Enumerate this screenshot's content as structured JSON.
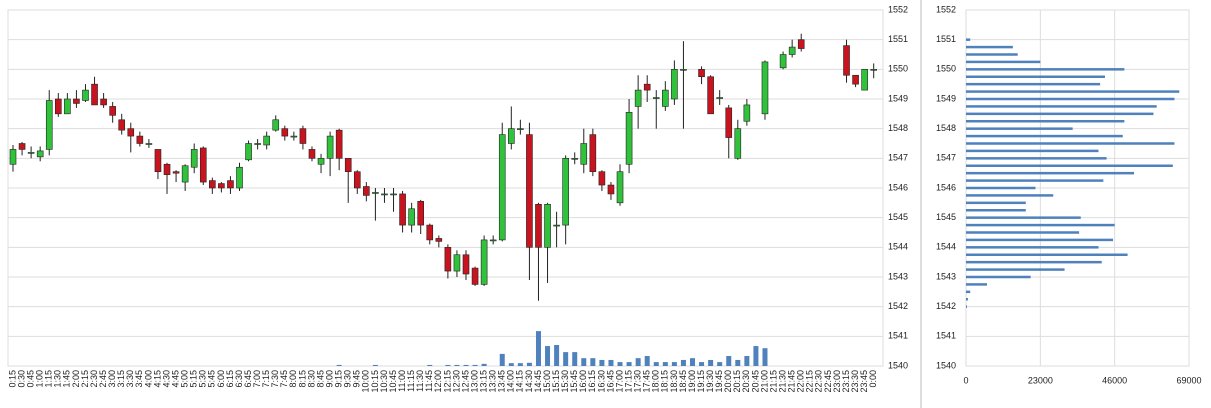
{
  "chart_data": [
    {
      "type": "candlestick",
      "categories": [
        "0:15",
        "0:30",
        "0:45",
        "1:00",
        "1:15",
        "1:30",
        "1:45",
        "2:00",
        "2:15",
        "2:30",
        "2:45",
        "3:00",
        "3:15",
        "3:30",
        "3:45",
        "4:00",
        "4:15",
        "4:30",
        "4:45",
        "5:00",
        "5:15",
        "5:30",
        "5:45",
        "6:00",
        "6:15",
        "6:30",
        "6:45",
        "7:00",
        "7:15",
        "7:30",
        "7:45",
        "8:00",
        "8:15",
        "8:30",
        "8:45",
        "9:00",
        "9:15",
        "9:30",
        "9:45",
        "10:00",
        "10:15",
        "10:30",
        "10:45",
        "11:00",
        "11:15",
        "11:30",
        "11:45",
        "12:00",
        "12:15",
        "12:30",
        "12:45",
        "13:00",
        "13:15",
        "13:30",
        "13:45",
        "14:00",
        "14:15",
        "14:30",
        "14:45",
        "15:00",
        "15:15",
        "15:30",
        "15:45",
        "16:00",
        "16:15",
        "16:30",
        "16:45",
        "17:00",
        "17:15",
        "17:30",
        "17:45",
        "18:00",
        "18:15",
        "18:30",
        "18:45",
        "19:00",
        "19:15",
        "19:30",
        "19:45",
        "20:00",
        "20:15",
        "20:30",
        "20:45",
        "21:00",
        "21:15",
        "21:30",
        "21:45",
        "22:00",
        "22:15",
        "22:30",
        "22:45",
        "23:00",
        "23:15",
        "23:30",
        "23:45",
        "0:00"
      ],
      "open": [
        1546.8,
        1547.5,
        1547.2,
        1547.05,
        1547.3,
        1549.0,
        1548.5,
        1549.0,
        1548.95,
        1549.5,
        1549.0,
        1548.75,
        1548.3,
        1548.0,
        1547.75,
        1547.5,
        1547.3,
        1546.8,
        1546.55,
        1546.2,
        1546.7,
        1547.35,
        1546.25,
        1546.15,
        1546.25,
        1546.0,
        1546.95,
        1547.5,
        1547.45,
        1547.95,
        1548.0,
        1547.75,
        1548.0,
        1547.3,
        1546.8,
        1547.0,
        1547.95,
        1547.0,
        1546.55,
        1546.05,
        1545.85,
        1545.8,
        1545.8,
        1545.8,
        1544.75,
        1545.55,
        1544.75,
        1544.3,
        1544.0,
        1543.2,
        1543.75,
        1543.3,
        1542.75,
        1544.25,
        1544.25,
        1547.5,
        1548.0,
        1547.8,
        1545.45,
        1544.0,
        1544.75,
        1544.75,
        1547.0,
        1546.8,
        1547.8,
        1546.55,
        1546.1,
        1545.5,
        1546.8,
        1548.75,
        1549.5,
        1549.05,
        1548.75,
        1549.0,
        1550.0,
        null,
        1550.0,
        1549.75,
        1549.05,
        1548.7,
        1547.0,
        1548.25,
        null,
        1548.5,
        null,
        1550.05,
        1550.5,
        1551.0,
        null,
        null,
        null,
        null,
        1550.8,
        1549.8,
        1549.3,
        1550.0
      ],
      "high": [
        1547.45,
        1547.55,
        1547.4,
        1547.4,
        1549.3,
        1549.2,
        1549.2,
        1549.3,
        1549.5,
        1549.75,
        1549.2,
        1548.9,
        1548.5,
        1548.2,
        1547.9,
        1547.65,
        1547.3,
        1546.85,
        1546.6,
        1546.8,
        1547.5,
        1547.4,
        1546.35,
        1546.2,
        1546.4,
        1546.85,
        1547.6,
        1547.65,
        1547.9,
        1548.45,
        1548.1,
        1547.9,
        1548.1,
        1547.4,
        1547.15,
        1547.9,
        1548.0,
        1547.0,
        1546.6,
        1546.2,
        1546.0,
        1546.0,
        1546.0,
        1545.9,
        1545.5,
        1545.6,
        1544.8,
        1544.4,
        1544.1,
        1543.9,
        1543.9,
        1543.35,
        1544.4,
        1544.4,
        1548.2,
        1548.75,
        1548.3,
        1548.2,
        1545.5,
        1545.5,
        1545.2,
        1547.1,
        1547.2,
        1548.0,
        1548.0,
        1546.6,
        1546.2,
        1546.8,
        1549.0,
        1549.8,
        1549.8,
        1549.3,
        1549.6,
        1550.3,
        1550.95,
        null,
        1550.1,
        1549.8,
        1549.3,
        1548.8,
        1548.3,
        1549.0,
        null,
        1550.3,
        null,
        1550.6,
        1551.0,
        1551.2,
        null,
        null,
        null,
        null,
        1551.0,
        1549.8,
        1550.0,
        1550.2
      ],
      "low": [
        1546.55,
        1547.1,
        1547.0,
        1546.9,
        1547.1,
        1548.4,
        1548.5,
        1548.7,
        1548.9,
        1548.8,
        1548.7,
        1548.2,
        1547.8,
        1547.2,
        1547.4,
        1547.35,
        1546.3,
        1545.8,
        1546.2,
        1545.9,
        1546.5,
        1546.1,
        1545.8,
        1545.85,
        1545.8,
        1545.9,
        1546.9,
        1547.3,
        1547.3,
        1547.9,
        1547.6,
        1547.6,
        1547.3,
        1546.9,
        1546.5,
        1546.4,
        1546.6,
        1545.5,
        1545.8,
        1545.55,
        1544.9,
        1545.5,
        1545.2,
        1544.5,
        1544.5,
        1544.45,
        1544.1,
        1544.0,
        1542.95,
        1543.0,
        1542.9,
        1542.7,
        1542.7,
        1544.1,
        1544.2,
        1547.3,
        1547.8,
        1542.9,
        1542.2,
        1542.8,
        1544.0,
        1544.1,
        1546.8,
        1546.5,
        1546.4,
        1545.9,
        1545.6,
        1545.4,
        1546.5,
        1548.0,
        1548.9,
        1548.0,
        1548.6,
        1548.8,
        1548.0,
        null,
        1549.5,
        1548.5,
        1548.8,
        1547.0,
        1546.95,
        1548.1,
        null,
        1548.3,
        null,
        1550.0,
        1550.4,
        1550.6,
        null,
        null,
        null,
        null,
        1549.55,
        1549.4,
        1549.3,
        1549.7
      ],
      "close": [
        1547.3,
        1547.3,
        1547.2,
        1547.25,
        1548.95,
        1548.5,
        1549.0,
        1548.85,
        1549.3,
        1548.8,
        1548.8,
        1548.45,
        1547.95,
        1547.75,
        1547.5,
        1547.5,
        1546.55,
        1546.45,
        1546.5,
        1546.75,
        1547.3,
        1546.2,
        1546.0,
        1546.0,
        1546.0,
        1546.7,
        1547.5,
        1547.5,
        1547.75,
        1548.3,
        1547.75,
        1547.75,
        1547.5,
        1547.0,
        1547.0,
        1547.75,
        1547.0,
        1546.55,
        1546.0,
        1545.75,
        1545.85,
        1545.8,
        1545.8,
        1544.75,
        1545.3,
        1544.75,
        1544.25,
        1544.2,
        1543.2,
        1543.75,
        1543.1,
        1542.75,
        1544.25,
        1544.25,
        1547.8,
        1548.0,
        1548.0,
        1544.0,
        1544.0,
        1545.45,
        1544.75,
        1547.0,
        1547.0,
        1547.5,
        1546.55,
        1546.1,
        1545.8,
        1546.55,
        1548.55,
        1549.3,
        1549.3,
        1549.05,
        1549.3,
        1550.0,
        1550.0,
        null,
        1549.75,
        1548.5,
        1549.05,
        1547.7,
        1548.0,
        1548.8,
        null,
        1550.25,
        null,
        1550.5,
        1550.75,
        1550.7,
        null,
        null,
        null,
        null,
        1549.8,
        1549.5,
        1550.0,
        1550.0
      ],
      "volume": [
        0,
        0,
        0,
        0,
        0,
        0,
        0,
        0,
        0,
        0,
        0,
        0,
        0,
        0,
        0,
        0,
        0,
        0,
        0,
        0,
        0,
        0,
        0,
        0,
        0,
        0,
        0,
        0,
        0,
        0,
        0,
        0,
        0,
        0,
        0,
        0,
        300,
        0,
        0,
        0,
        300,
        0,
        0,
        0,
        0,
        0,
        300,
        0,
        300,
        300,
        300,
        300,
        600,
        0,
        3400,
        800,
        800,
        900,
        9800,
        5600,
        5900,
        3900,
        3900,
        2200,
        2200,
        1700,
        1700,
        1100,
        1100,
        2200,
        2800,
        1100,
        1100,
        1100,
        1700,
        2200,
        1100,
        1700,
        1100,
        2800,
        1700,
        2800,
        5600,
        5000,
        0,
        0,
        0,
        0,
        0,
        0,
        0,
        0,
        0,
        0,
        0,
        0
      ],
      "up_color": "#2fc23a",
      "down_color": "#c8141e",
      "volume_color": "#4f81bd",
      "ylim": [
        1540,
        1552
      ],
      "yticks": [
        1540,
        1541,
        1542,
        1543,
        1544,
        1545,
        1546,
        1547,
        1548,
        1549,
        1550,
        1551,
        1552
      ],
      "y2lim": [
        0,
        100000
      ],
      "grid": true
    },
    {
      "type": "barh",
      "y": [
        1551,
        1550.75,
        1550.5,
        1550.25,
        1550,
        1549.75,
        1549.5,
        1549.25,
        1549,
        1548.75,
        1548.5,
        1548.25,
        1548,
        1547.75,
        1547.5,
        1547.25,
        1547,
        1546.75,
        1546.5,
        1546.25,
        1546,
        1545.75,
        1545.5,
        1545.25,
        1545,
        1544.75,
        1544.5,
        1544.25,
        1544,
        1543.75,
        1543.5,
        1543.25,
        1543,
        1542.75,
        1542.5,
        1542.25,
        1542
      ],
      "values": [
        1300,
        14500,
        16000,
        23000,
        49000,
        43000,
        41500,
        66000,
        64500,
        59000,
        58000,
        49000,
        33000,
        48500,
        64500,
        41000,
        43500,
        64000,
        52000,
        42500,
        21500,
        27000,
        18500,
        18500,
        35500,
        46000,
        35000,
        45500,
        41000,
        50000,
        42000,
        30500,
        20000,
        6500,
        1300,
        600,
        300
      ],
      "color": "#4f81bd",
      "xlim": [
        0,
        69000
      ],
      "xticks": [
        0,
        23000,
        46000,
        69000
      ],
      "ylim": [
        1540,
        1552
      ],
      "yticks": [
        1540,
        1541,
        1542,
        1543,
        1544,
        1545,
        1546,
        1547,
        1548,
        1549,
        1550,
        1551,
        1552
      ],
      "grid": true
    }
  ]
}
